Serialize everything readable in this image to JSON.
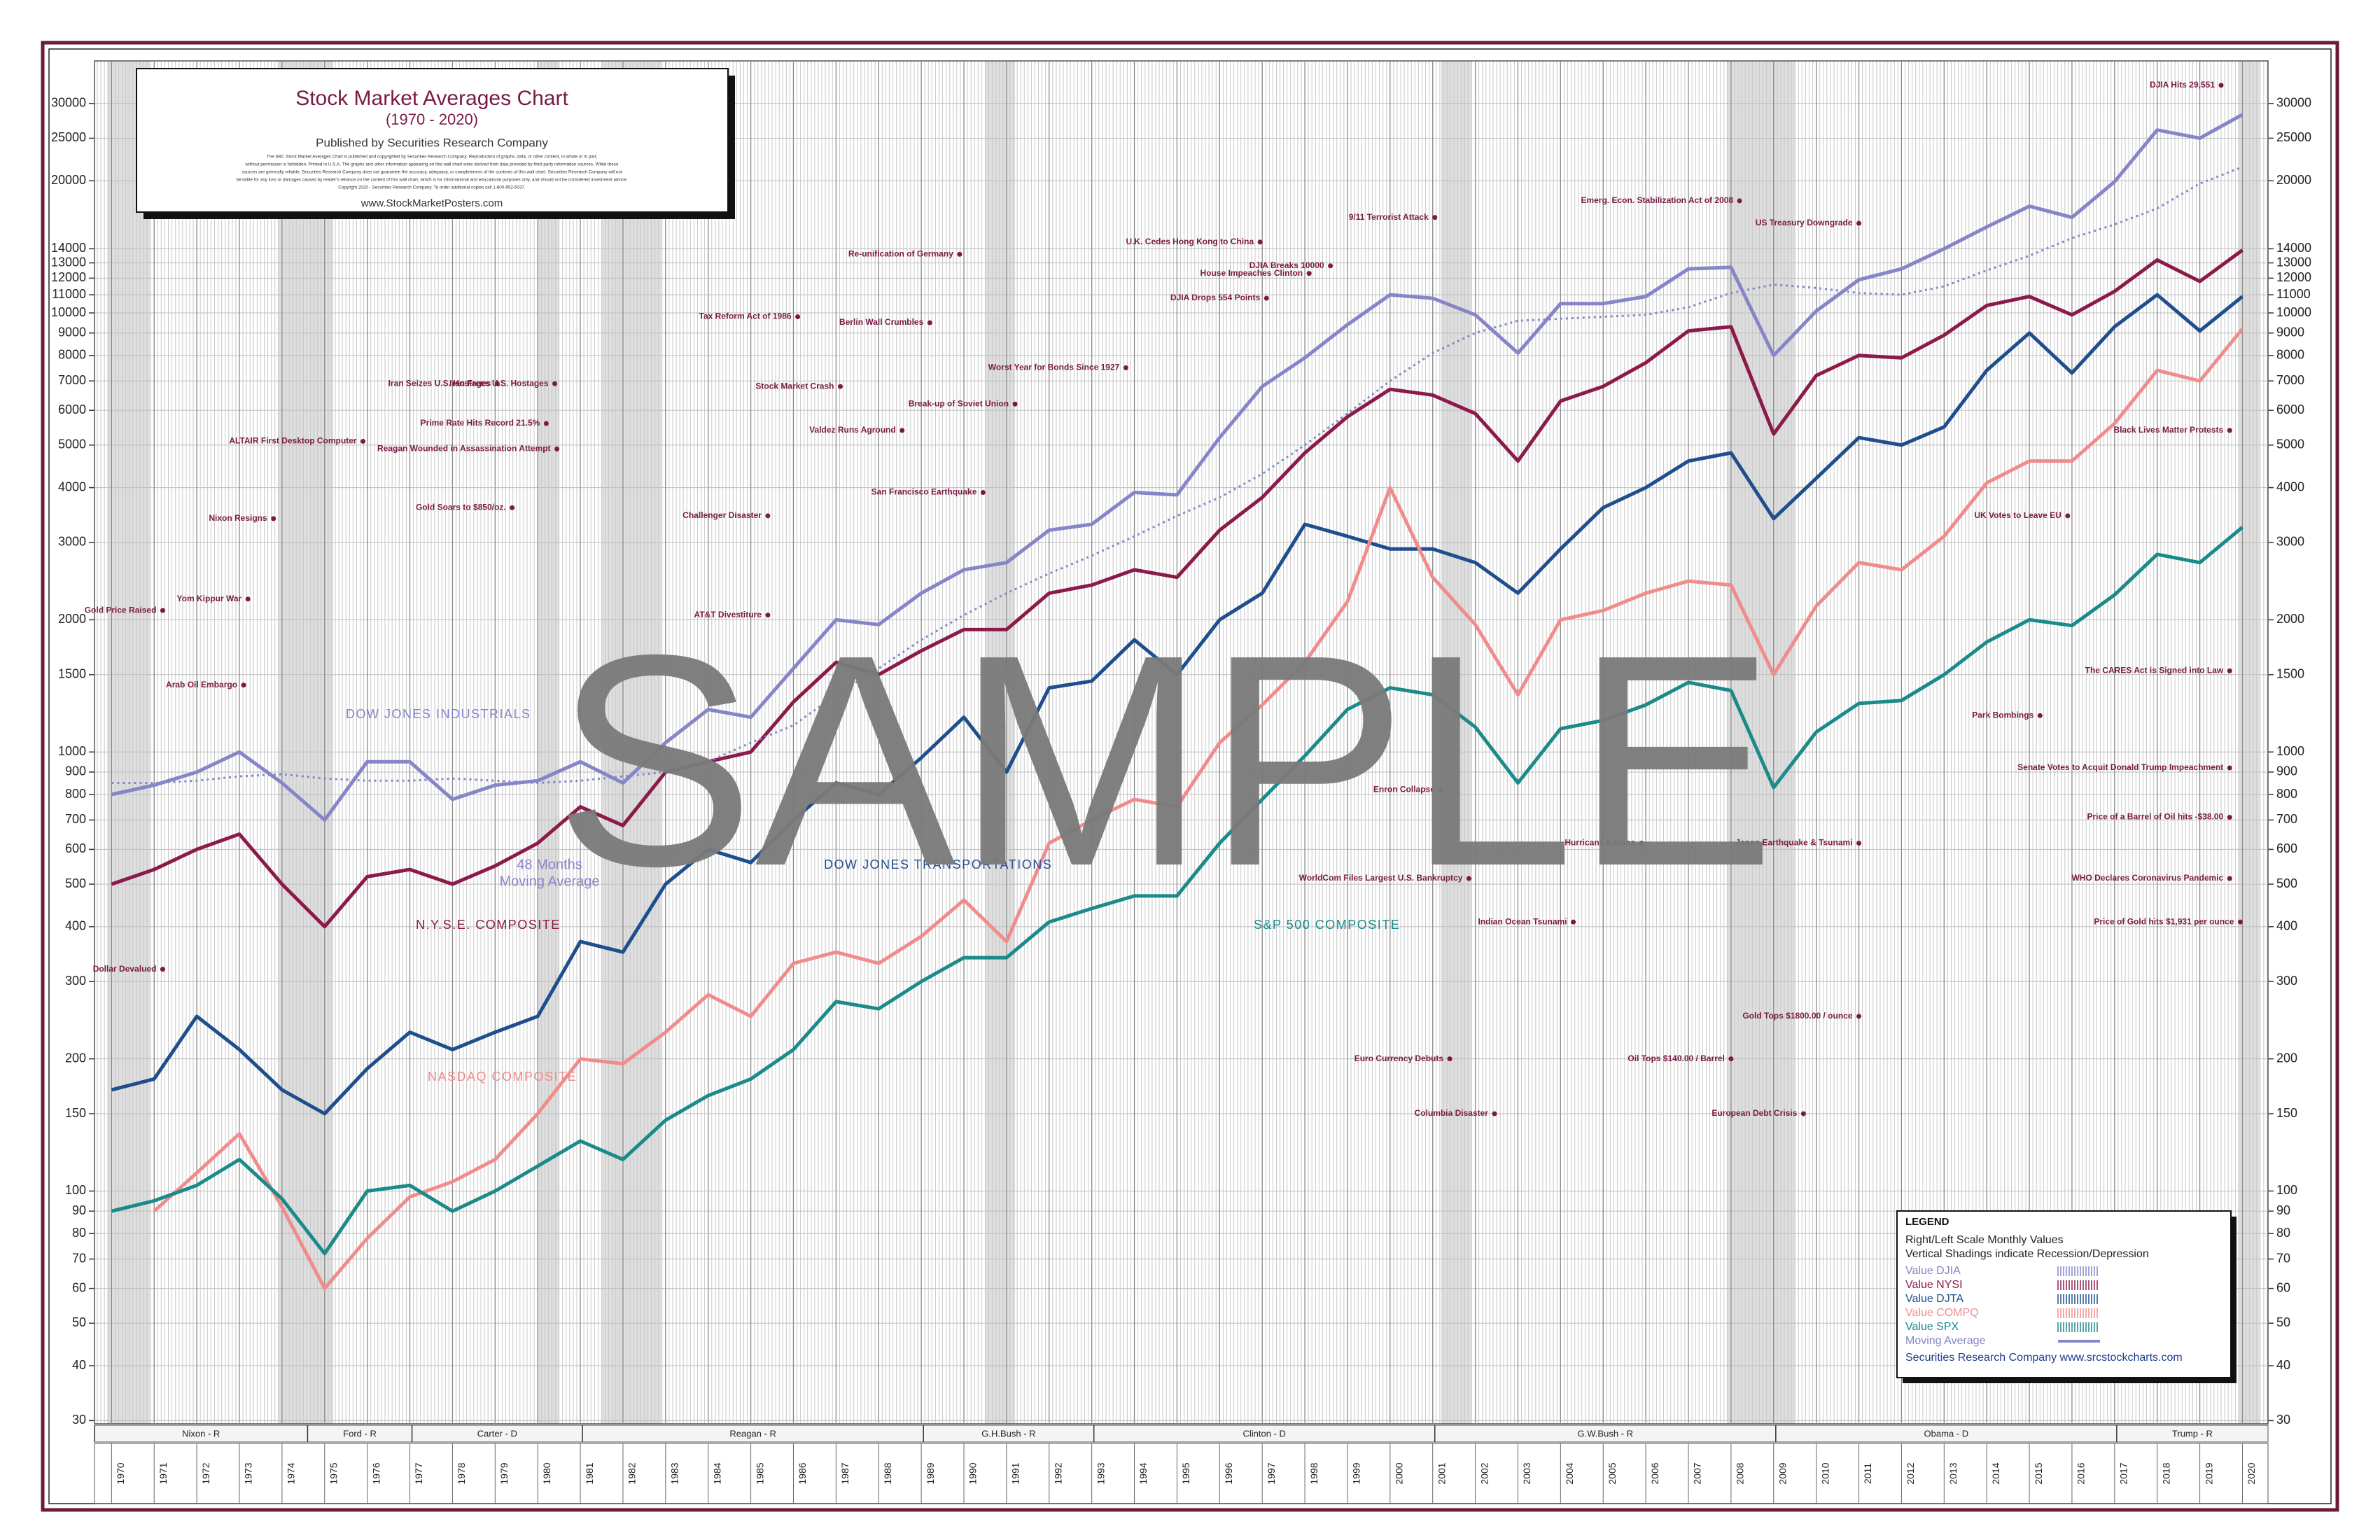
{
  "chart_data": {
    "type": "line",
    "title": "Stock Market Averages Chart",
    "subtitle": "(1970 - 2020)",
    "log_scale": true,
    "grid": true,
    "x": [
      1970,
      1971,
      1972,
      1973,
      1974,
      1975,
      1976,
      1977,
      1978,
      1979,
      1980,
      1981,
      1982,
      1983,
      1984,
      1985,
      1986,
      1987,
      1988,
      1989,
      1990,
      1991,
      1992,
      1993,
      1994,
      1995,
      1996,
      1997,
      1998,
      1999,
      2000,
      2001,
      2002,
      2003,
      2004,
      2005,
      2006,
      2007,
      2008,
      2009,
      2010,
      2011,
      2012,
      2013,
      2014,
      2015,
      2016,
      2017,
      2018,
      2019,
      2020
    ],
    "xlim": [
      1969.6,
      2020.6
    ],
    "xticks": [
      1970,
      1971,
      1972,
      1973,
      1974,
      1975,
      1976,
      1977,
      1978,
      1979,
      1980,
      1981,
      1982,
      1983,
      1984,
      1985,
      1986,
      1987,
      1988,
      1989,
      1990,
      1991,
      1992,
      1993,
      1994,
      1995,
      1996,
      1997,
      1998,
      1999,
      2000,
      2001,
      2002,
      2003,
      2004,
      2005,
      2006,
      2007,
      2008,
      2009,
      2010,
      2011,
      2012,
      2013,
      2014,
      2015,
      2016,
      2017,
      2018,
      2019,
      2020
    ],
    "ylim": [
      29.5,
      37500
    ],
    "yticks": [
      30,
      40,
      50,
      60,
      70,
      80,
      90,
      100,
      150,
      200,
      300,
      400,
      500,
      600,
      700,
      800,
      900,
      1000,
      1500,
      2000,
      3000,
      4000,
      5000,
      6000,
      7000,
      8000,
      9000,
      10000,
      11000,
      12000,
      13000,
      14000,
      20000,
      25000,
      30000
    ],
    "series": [
      {
        "name": "Value DJIA",
        "label": "DOW JONES INDUSTRIALS",
        "color": "#8585c8",
        "values": [
          800,
          840,
          900,
          1000,
          850,
          700,
          950,
          950,
          780,
          840,
          860,
          950,
          850,
          1050,
          1250,
          1200,
          1550,
          2000,
          1950,
          2300,
          2600,
          2700,
          3200,
          3300,
          3900,
          3850,
          5200,
          6800,
          7900,
          9400,
          11000,
          10800,
          9900,
          8100,
          10500,
          10500,
          10900,
          12600,
          12700,
          8000,
          10100,
          11900,
          12600,
          14000,
          15700,
          17500,
          16500,
          19900,
          26100,
          25000,
          28300
        ]
      },
      {
        "name": "Value NYSI",
        "label": "N.Y.S.E. COMPOSITE",
        "color": "#8b1a4a",
        "values": [
          500,
          540,
          600,
          650,
          500,
          400,
          520,
          540,
          500,
          550,
          620,
          750,
          680,
          900,
          950,
          1000,
          1300,
          1600,
          1500,
          1700,
          1900,
          1900,
          2300,
          2400,
          2600,
          2500,
          3200,
          3800,
          4800,
          5800,
          6700,
          6500,
          5900,
          4600,
          6300,
          6800,
          7700,
          9100,
          9300,
          5300,
          7200,
          8000,
          7900,
          8900,
          10400,
          10900,
          9900,
          11200,
          13200,
          11800,
          13900
        ]
      },
      {
        "name": "Value DJTA",
        "label": "DOW JONES TRANSPORTATIONS",
        "color": "#1f4e8c",
        "values": [
          170,
          180,
          250,
          210,
          170,
          150,
          190,
          230,
          210,
          230,
          250,
          370,
          350,
          500,
          600,
          560,
          700,
          850,
          800,
          970,
          1200,
          900,
          1400,
          1450,
          1800,
          1500,
          2000,
          2300,
          3300,
          3100,
          2900,
          2900,
          2700,
          2300,
          2900,
          3600,
          4000,
          4600,
          4800,
          3400,
          4200,
          5200,
          5000,
          5500,
          7400,
          9000,
          7300,
          9300,
          11000,
          9100,
          10900
        ]
      },
      {
        "name": "Value COMPQ",
        "label": "NASDAQ COMPOSITE",
        "color": "#f08c8c",
        "values": [
          null,
          90,
          110,
          135,
          92,
          60,
          78,
          97,
          105,
          118,
          150,
          200,
          195,
          230,
          280,
          250,
          330,
          350,
          330,
          380,
          460,
          370,
          620,
          700,
          780,
          750,
          1050,
          1280,
          1600,
          2200,
          4000,
          2500,
          1950,
          1350,
          2000,
          2100,
          2300,
          2450,
          2400,
          1500,
          2150,
          2700,
          2600,
          3100,
          4100,
          4600,
          4600,
          5600,
          7400,
          7000,
          9200
        ]
      },
      {
        "name": "Value SPX",
        "label": "S&P 500 COMPOSITE",
        "color": "#1a8a8a",
        "values": [
          90,
          95,
          103,
          118,
          96,
          72,
          100,
          103,
          90,
          100,
          114,
          130,
          118,
          145,
          165,
          180,
          210,
          270,
          260,
          300,
          340,
          340,
          410,
          440,
          470,
          470,
          620,
          780,
          980,
          1250,
          1400,
          1350,
          1140,
          850,
          1130,
          1180,
          1280,
          1440,
          1380,
          830,
          1110,
          1290,
          1310,
          1500,
          1780,
          2000,
          1940,
          2280,
          2820,
          2700,
          3250
        ]
      },
      {
        "name": "Moving Average",
        "label": [
          "48 Months",
          "Moving Average"
        ],
        "color": "#8585c8",
        "dashed": true,
        "values": [
          850,
          850,
          860,
          880,
          890,
          870,
          860,
          860,
          870,
          860,
          850,
          860,
          880,
          900,
          950,
          1050,
          1150,
          1350,
          1550,
          1800,
          2050,
          2300,
          2550,
          2800,
          3100,
          3450,
          3800,
          4300,
          5000,
          5900,
          7000,
          8100,
          9000,
          9600,
          9700,
          9800,
          9900,
          10300,
          11100,
          11600,
          11400,
          11100,
          11000,
          11500,
          12500,
          13500,
          14800,
          15900,
          17300,
          19700,
          21500
        ]
      }
    ],
    "recessions": [
      [
        1969.9,
        1970.9
      ],
      [
        1973.9,
        1975.2
      ],
      [
        1980.0,
        1980.5
      ],
      [
        1981.5,
        1982.9
      ],
      [
        1990.5,
        1991.2
      ],
      [
        2001.2,
        2001.9
      ],
      [
        2007.9,
        2009.5
      ],
      [
        2019.9,
        2020.4
      ]
    ],
    "presidents": [
      {
        "name": "Nixon - R",
        "start": 1969.6,
        "end": 1974.6
      },
      {
        "name": "Ford - R",
        "start": 1974.6,
        "end": 1977.05
      },
      {
        "name": "Carter - D",
        "start": 1977.05,
        "end": 1981.05
      },
      {
        "name": "Reagan - R",
        "start": 1981.05,
        "end": 1989.05
      },
      {
        "name": "G.H.Bush - R",
        "start": 1989.05,
        "end": 1993.05
      },
      {
        "name": "Clinton - D",
        "start": 1993.05,
        "end": 2001.05
      },
      {
        "name": "G.W.Bush - R",
        "start": 2001.05,
        "end": 2009.05
      },
      {
        "name": "Obama - D",
        "start": 2009.05,
        "end": 2017.05
      },
      {
        "name": "Trump - R",
        "start": 2017.05,
        "end": 2020.6
      }
    ],
    "annotations": [
      {
        "text": "DJIA Hits 29,551",
        "date": 2019.5,
        "value": 33000
      },
      {
        "text": "Emerg. Econ. Stabilization Act of 2008",
        "date": 2008.2,
        "value": 18000
      },
      {
        "text": "US Treasury Downgrade",
        "date": 2011.0,
        "value": 16000
      },
      {
        "text": "9/11 Terrorist Attack",
        "date": 2001.05,
        "value": 16500
      },
      {
        "text": "U.K. Cedes Hong Kong to China",
        "date": 1996.95,
        "value": 14500
      },
      {
        "text": "House Impeaches Clinton",
        "date": 1998.1,
        "value": 12300
      },
      {
        "text": "DJIA Breaks 10000",
        "date": 1998.6,
        "value": 12800
      },
      {
        "text": "DJIA Drops 554 Points",
        "date": 1997.1,
        "value": 10800
      },
      {
        "text": "Re-unification of Germany",
        "date": 1989.9,
        "value": 13600
      },
      {
        "text": "Tax Reform Act of 1986",
        "date": 1986.1,
        "value": 9800
      },
      {
        "text": "Berlin Wall Crumbles",
        "date": 1989.2,
        "value": 9500
      },
      {
        "text": "Worst Year for Bonds Since 1927",
        "date": 1993.8,
        "value": 7500
      },
      {
        "text": "Iran Seizes U.S. Hostages",
        "date": 1979.05,
        "value": 6900
      },
      {
        "text": "Iran Frees U.S. Hostages",
        "date": 1980.4,
        "value": 6900
      },
      {
        "text": "Stock Market Crash",
        "date": 1987.1,
        "value": 6800
      },
      {
        "text": "Break-up of Soviet Union",
        "date": 1991.2,
        "value": 6200
      },
      {
        "text": "Prime Rate Hits Record 21.5%",
        "date": 1980.2,
        "value": 5600
      },
      {
        "text": "Valdez Runs Aground",
        "date": 1988.55,
        "value": 5400
      },
      {
        "text": "ALTAIR First Desktop Computer",
        "date": 1975.9,
        "value": 5100
      },
      {
        "text": "Reagan Wounded in Assassination Attempt",
        "date": 1980.45,
        "value": 4900
      },
      {
        "text": "Black Lives Matter Protests",
        "date": 2019.7,
        "value": 5400
      },
      {
        "text": "San Francisco Earthquake",
        "date": 1990.45,
        "value": 3900
      },
      {
        "text": "Gold Soars to $850/oz.",
        "date": 1979.4,
        "value": 3600
      },
      {
        "text": "Nixon Resigns",
        "date": 1973.8,
        "value": 3400
      },
      {
        "text": "Challenger Disaster",
        "date": 1985.4,
        "value": 3450
      },
      {
        "text": "UK Votes to Leave EU",
        "date": 2015.9,
        "value": 3450
      },
      {
        "text": "Yom Kippur War",
        "date": 1973.2,
        "value": 2230
      },
      {
        "text": "Gold Price Raised",
        "date": 1971.2,
        "value": 2100
      },
      {
        "text": "AT&T Divestiture",
        "date": 1985.4,
        "value": 2050
      },
      {
        "text": "Arab Oil Embargo",
        "date": 1973.1,
        "value": 1420
      },
      {
        "text": "The CARES Act is Signed into Law",
        "date": 2019.7,
        "value": 1530
      },
      {
        "text": "Park Bombings",
        "date": 2015.25,
        "value": 1210
      },
      {
        "text": "Enron Collapse",
        "date": 2001.2,
        "value": 820
      },
      {
        "text": "Senate Votes to Acquit Donald Trump Impeachment",
        "date": 2019.7,
        "value": 920
      },
      {
        "text": "Price of a Barrel of Oil hits -$38.00",
        "date": 2019.7,
        "value": 710
      },
      {
        "text": "Hurricane Katrina",
        "date": 2005.9,
        "value": 620
      },
      {
        "text": "Japan Earthquake & Tsunami",
        "date": 2011.0,
        "value": 620
      },
      {
        "text": "WHO Declares Coronavirus Pandemic",
        "date": 2019.7,
        "value": 515
      },
      {
        "text": "WorldCom Files Largest U.S. Bankruptcy",
        "date": 2001.85,
        "value": 515
      },
      {
        "text": "Indian Ocean Tsunami",
        "date": 2004.3,
        "value": 410
      },
      {
        "text": "Price of Gold hits $1,931 per ounce",
        "date": 2019.95,
        "value": 410
      },
      {
        "text": "Dollar Devalued",
        "date": 1971.2,
        "value": 320
      },
      {
        "text": "Gold Tops $1800.00 / ounce",
        "date": 2011.0,
        "value": 250
      },
      {
        "text": "Euro Currency Debuts",
        "date": 2001.4,
        "value": 200
      },
      {
        "text": "Oil Tops $140.00 / Barrel",
        "date": 2008.0,
        "value": 200
      },
      {
        "text": "Columbia Disaster",
        "date": 2002.45,
        "value": 150
      },
      {
        "text": "European Debt Crisis",
        "date": 2009.7,
        "value": 150
      }
    ],
    "legend": {
      "title": "LEGEND",
      "notes": [
        "Right/Left Scale Monthly Values",
        "Vertical Shadings indicate Recession/Depression"
      ],
      "footer": "Securities Research Company www.srcstockcharts.com"
    }
  },
  "title_box": {
    "publisher": "Published by Securities Research Company",
    "disclaimer": [
      "The SRC Stock Market Averages Chart is published and copyrighted by Securities Research Company. Reproduction of graphs, data, or other content, in whole or in part,",
      "without permission is forbidden. Printed in U.S.A. The graphs and other information appearing on this wall chart were derived from data provided by third party information sources. While these",
      "sources are generally reliable, Securities Research Company does not guarantee the accuracy, adequacy, or completeness of the contents of this wall chart. Securities Research Company will not",
      "be liable for any loss or damages caused by reader's reliance on the content of this wall chart, which is for informational and educational purposes only, and should not be considered investment advice.",
      "Copyright 2020 - Securities Research Company. To order additional copies call 1-800-652-6037."
    ],
    "url": "www.StockMarketPosters.com"
  },
  "watermark": "SAMPLE"
}
